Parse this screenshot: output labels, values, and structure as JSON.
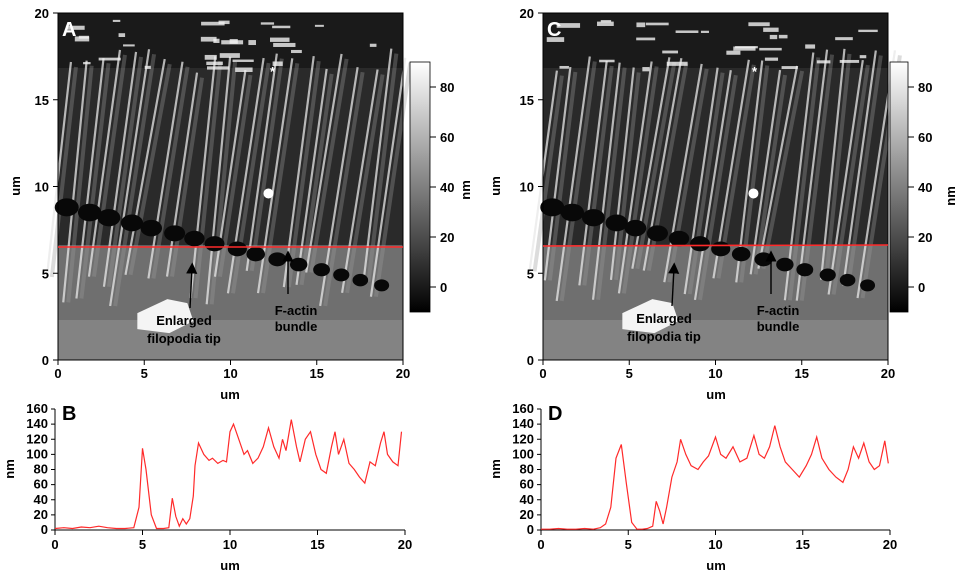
{
  "colors": {
    "profile_line": "#ff2a2a",
    "afm_dark": "#111111",
    "afm_light": "#f2f2f2"
  },
  "panels": {
    "A": {
      "letter": "A",
      "xlabel": "um",
      "ylabel": "um",
      "colorbar_label": "nm",
      "annotations": {
        "filopodia_line1": "Enlarged",
        "filopodia_line2": "filopodia tip",
        "bundle_line1": "F-actin",
        "bundle_line2": "bundle",
        "asterisk": "*"
      }
    },
    "C": {
      "letter": "C",
      "xlabel": "um",
      "ylabel": "um",
      "colorbar_label": "nm",
      "annotations": {
        "filopodia_line1": "Enlarged",
        "filopodia_line2": "filopodia tip",
        "bundle_line1": "F-actin",
        "bundle_line2": "bundle",
        "asterisk": "*"
      }
    },
    "B": {
      "letter": "B",
      "xlabel": "um",
      "ylabel": "nm"
    },
    "D": {
      "letter": "D",
      "xlabel": "um",
      "ylabel": "nm"
    }
  },
  "chart_data": [
    {
      "type": "heatmap",
      "panel": "A",
      "xlabel": "um",
      "ylabel": "um",
      "xlim": [
        0,
        20
      ],
      "ylim": [
        0,
        20
      ],
      "x_ticks": [
        0,
        5,
        10,
        15,
        20
      ],
      "y_ticks": [
        0,
        5,
        10,
        15,
        20
      ],
      "colorbar": {
        "label": "nm",
        "ticks": [
          0,
          20,
          40,
          60,
          80
        ],
        "range": [
          -10,
          90
        ]
      },
      "line_profile_y": 6.5,
      "annotations": [
        {
          "text": "Enlarged filopodia tip",
          "arrow_to": [
            7.7,
            5.6
          ]
        },
        {
          "text": "F-actin bundle",
          "arrow_to": [
            13.3,
            6.0
          ]
        },
        {
          "text": "*",
          "at": [
            12.5,
            17.0
          ]
        }
      ]
    },
    {
      "type": "heatmap",
      "panel": "C",
      "xlabel": "um",
      "ylabel": "um",
      "xlim": [
        0,
        20
      ],
      "ylim": [
        0,
        20
      ],
      "x_ticks": [
        0,
        5,
        10,
        15,
        20
      ],
      "y_ticks": [
        0,
        5,
        10,
        15,
        20
      ],
      "colorbar": {
        "label": "nm",
        "ticks": [
          0,
          20,
          40,
          60,
          80
        ],
        "range": [
          -10,
          90
        ]
      },
      "line_profile_y": 6.5,
      "annotations": [
        {
          "text": "Enlarged filopodia tip",
          "arrow_to": [
            7.5,
            5.5
          ]
        },
        {
          "text": "F-actin bundle",
          "arrow_to": [
            13.3,
            6.0
          ]
        },
        {
          "text": "*",
          "at": [
            12.5,
            17.0
          ]
        }
      ]
    },
    {
      "type": "line",
      "panel": "B",
      "xlabel": "um",
      "ylabel": "nm",
      "xlim": [
        0,
        20
      ],
      "ylim": [
        0,
        160
      ],
      "x_ticks": [
        0,
        5,
        10,
        15,
        20
      ],
      "y_ticks": [
        0,
        20,
        40,
        60,
        80,
        100,
        120,
        140,
        160
      ],
      "series": [
        {
          "x": [
            0,
            0.5,
            1.0,
            1.5,
            2.0,
            2.5,
            3.0,
            3.5,
            4.0,
            4.5,
            4.8,
            5.0,
            5.2,
            5.5,
            5.8,
            6.2,
            6.5,
            6.7,
            6.9,
            7.1,
            7.3,
            7.5,
            7.7,
            7.9,
            8.0,
            8.2,
            8.5,
            8.8,
            9.0,
            9.3,
            9.6,
            9.8,
            10.0,
            10.2,
            10.5,
            10.8,
            11.0,
            11.3,
            11.6,
            11.9,
            12.2,
            12.5,
            12.8,
            13.0,
            13.2,
            13.5,
            13.8,
            14.0,
            14.3,
            14.6,
            14.9,
            15.2,
            15.5,
            15.8,
            16.0,
            16.2,
            16.5,
            16.8,
            17.1,
            17.4,
            17.7,
            18.0,
            18.3,
            18.6,
            18.8,
            19.0,
            19.3,
            19.6,
            19.8
          ],
          "y": [
            2,
            3,
            2,
            4,
            3,
            5,
            3,
            2,
            2,
            3,
            30,
            108,
            80,
            20,
            2,
            2,
            3,
            42,
            18,
            5,
            15,
            8,
            15,
            45,
            85,
            115,
            100,
            92,
            95,
            88,
            92,
            90,
            130,
            140,
            120,
            100,
            105,
            88,
            95,
            110,
            135,
            110,
            95,
            120,
            105,
            146,
            110,
            90,
            120,
            130,
            100,
            80,
            75,
            110,
            130,
            100,
            120,
            88,
            80,
            70,
            62,
            90,
            85,
            115,
            130,
            100,
            90,
            85,
            130
          ]
        }
      ]
    },
    {
      "type": "line",
      "panel": "D",
      "xlabel": "um",
      "ylabel": "nm",
      "xlim": [
        0,
        20
      ],
      "ylim": [
        0,
        160
      ],
      "x_ticks": [
        0,
        5,
        10,
        15,
        20
      ],
      "y_ticks": [
        0,
        20,
        40,
        60,
        80,
        100,
        120,
        140,
        160
      ],
      "series": [
        {
          "x": [
            0,
            0.5,
            1.0,
            1.5,
            2.0,
            2.5,
            3.0,
            3.4,
            3.7,
            4.0,
            4.3,
            4.6,
            4.9,
            5.2,
            5.5,
            5.8,
            6.1,
            6.4,
            6.6,
            6.8,
            7.0,
            7.2,
            7.5,
            7.8,
            8.0,
            8.3,
            8.6,
            9.0,
            9.3,
            9.6,
            10.0,
            10.3,
            10.6,
            11.0,
            11.4,
            11.8,
            12.2,
            12.5,
            12.8,
            13.1,
            13.4,
            13.7,
            14.0,
            14.4,
            14.8,
            15.2,
            15.5,
            15.8,
            16.1,
            16.5,
            16.9,
            17.3,
            17.6,
            17.9,
            18.2,
            18.5,
            18.8,
            19.1,
            19.4,
            19.7,
            19.9
          ],
          "y": [
            1,
            1,
            2,
            1,
            1,
            2,
            1,
            3,
            8,
            30,
            95,
            113,
            60,
            10,
            1,
            1,
            2,
            5,
            38,
            25,
            8,
            30,
            70,
            90,
            120,
            100,
            85,
            80,
            90,
            98,
            123,
            100,
            95,
            110,
            90,
            95,
            125,
            100,
            95,
            110,
            138,
            110,
            90,
            80,
            70,
            85,
            100,
            123,
            95,
            80,
            70,
            63,
            80,
            110,
            95,
            115,
            90,
            80,
            85,
            118,
            88
          ]
        }
      ]
    }
  ]
}
